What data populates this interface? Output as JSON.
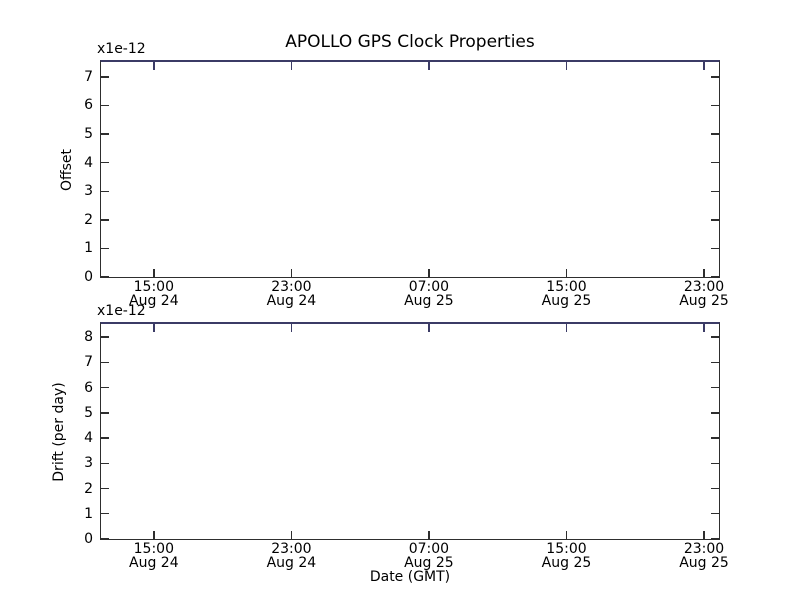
{
  "figure": {
    "title": "APOLLO GPS Clock Properties",
    "background": "#ffffff"
  },
  "colors": {
    "spine": "#2e2e2e",
    "top_spine": "#3b3b66",
    "tick": "#2e2e2e",
    "text": "#000000"
  },
  "chart_data": [
    {
      "type": "line",
      "title": "APOLLO GPS Clock Properties",
      "ylabel": "Offset",
      "xlabel": "",
      "offset_text": "x1e-12",
      "y_ticks": [
        0,
        1,
        2,
        3,
        4,
        5,
        6,
        7
      ],
      "ylim": [
        0,
        7.52
      ],
      "x_ticks": [
        {
          "time": "15:00",
          "date": "Aug 24",
          "frac": 0.0855
        },
        {
          "time": "23:00",
          "date": "Aug 24",
          "frac": 0.3081
        },
        {
          "time": "07:00",
          "date": "Aug 25",
          "frac": 0.5306
        },
        {
          "time": "15:00",
          "date": "Aug 25",
          "frac": 0.7532
        },
        {
          "time": "23:00",
          "date": "Aug 25",
          "frac": 0.9758
        }
      ],
      "grid": false,
      "legend": null,
      "series": []
    },
    {
      "type": "line",
      "title": "",
      "ylabel": "Drift (per day)",
      "xlabel": "Date (GMT)",
      "offset_text": "x1e-12",
      "y_ticks": [
        0,
        1,
        2,
        3,
        4,
        5,
        6,
        7,
        8
      ],
      "ylim": [
        0,
        8.52
      ],
      "x_ticks": [
        {
          "time": "15:00",
          "date": "Aug 24",
          "frac": 0.0855
        },
        {
          "time": "23:00",
          "date": "Aug 24",
          "frac": 0.3081
        },
        {
          "time": "07:00",
          "date": "Aug 25",
          "frac": 0.5306
        },
        {
          "time": "15:00",
          "date": "Aug 25",
          "frac": 0.7532
        },
        {
          "time": "23:00",
          "date": "Aug 25",
          "frac": 0.9758
        }
      ],
      "grid": false,
      "legend": null,
      "series": []
    }
  ]
}
